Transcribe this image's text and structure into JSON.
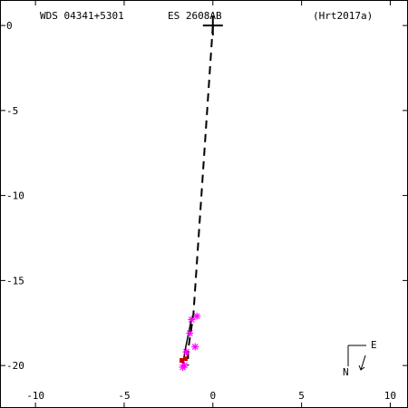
{
  "header": {
    "wds": "WDS 04341+5301",
    "discoverer": "ES 2608AB",
    "reference": "(Hrt2017a)"
  },
  "compass": {
    "east_label": "E",
    "north_label": "N"
  },
  "chart_data": {
    "type": "scatter",
    "xlim": [
      -12,
      11
    ],
    "ylim": [
      -22.5,
      1.5
    ],
    "x_ticks": [
      -10,
      -5,
      0,
      5,
      10
    ],
    "y_ticks": [
      0,
      -5,
      -10,
      -15,
      -20
    ],
    "x_tick_labels": [
      "-10",
      "-5",
      "0",
      "5",
      "10"
    ],
    "y_tick_labels": [
      "0",
      "-5",
      "-10",
      "-15",
      "-20"
    ],
    "primary": [
      0,
      0
    ],
    "dashed_line": [
      [
        0,
        0
      ],
      [
        -1.1,
        -17
      ],
      [
        -1.4,
        -19.1
      ],
      [
        -1.4,
        -20
      ]
    ],
    "orbit_arc": [
      [
        -1.2,
        -17.2
      ],
      [
        -1.35,
        -18
      ],
      [
        -1.55,
        -19
      ],
      [
        -1.7,
        -20
      ]
    ],
    "measures": [
      {
        "x": -0.9,
        "y": -17.1
      },
      {
        "x": -1.2,
        "y": -17.3
      },
      {
        "x": -1.3,
        "y": -18.1
      },
      {
        "x": -1.0,
        "y": -18.9
      },
      {
        "x": -1.5,
        "y": -19.2
      },
      {
        "x": -1.6,
        "y": -20.0
      },
      {
        "x": -1.7,
        "y": -20.1
      }
    ],
    "squares": [
      {
        "x": -1.55,
        "y": -19.6
      },
      {
        "x": -1.75,
        "y": -19.7
      }
    ],
    "colors": {
      "measure": "#ff00ff",
      "square": "#cc0000",
      "orbit": "#000000",
      "residual": "#00aa00"
    }
  }
}
